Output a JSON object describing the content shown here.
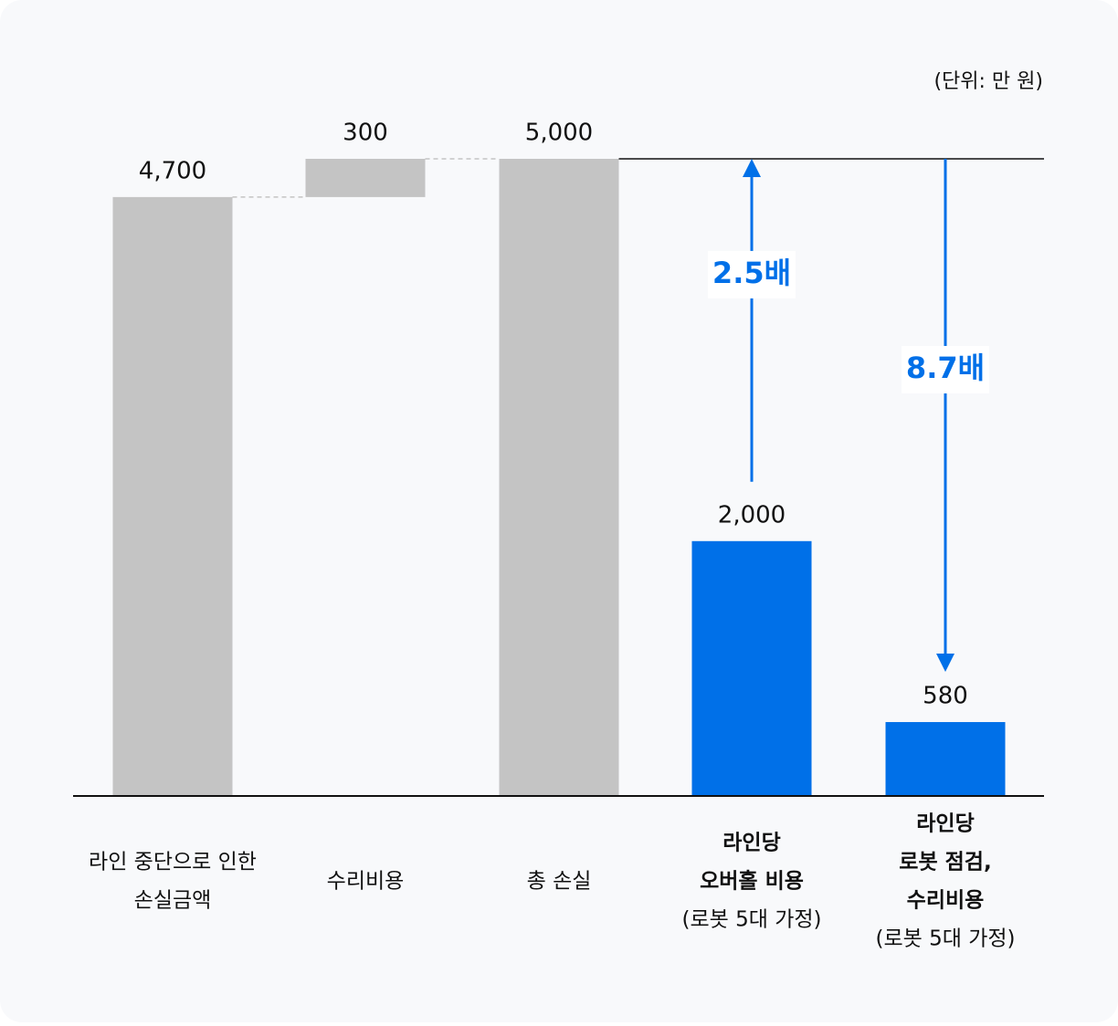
{
  "chart_data": {
    "type": "waterfall",
    "unit": "(단위: 만 원)",
    "categories": [
      [
        "라인 중단으로 인한",
        "손실금액"
      ],
      [
        "수리비용"
      ],
      [
        "총 손실"
      ],
      [
        "라인당",
        "오버홀 비용",
        "(로봇 5대 가정)"
      ],
      [
        "라인당",
        "로봇 점검,",
        "수리비용",
        "(로봇 5대 가정)"
      ]
    ],
    "label_bold": [
      false,
      false,
      false,
      true,
      true
    ],
    "measures": [
      "absolute",
      "relative",
      "total",
      "absolute",
      "absolute"
    ],
    "values": [
      4700,
      300,
      5000,
      2000,
      580
    ],
    "value_labels": [
      "4,700",
      "300",
      "5,000",
      "2,000",
      "580"
    ],
    "colors": [
      "#c4c4c4",
      "#c4c4c4",
      "#c4c4c4",
      "#0070e8",
      "#0070e8"
    ],
    "annotations": [
      "2.5배",
      "8.7배"
    ],
    "annotation_color": "#0070e8",
    "ylim": [
      0,
      5000
    ]
  }
}
